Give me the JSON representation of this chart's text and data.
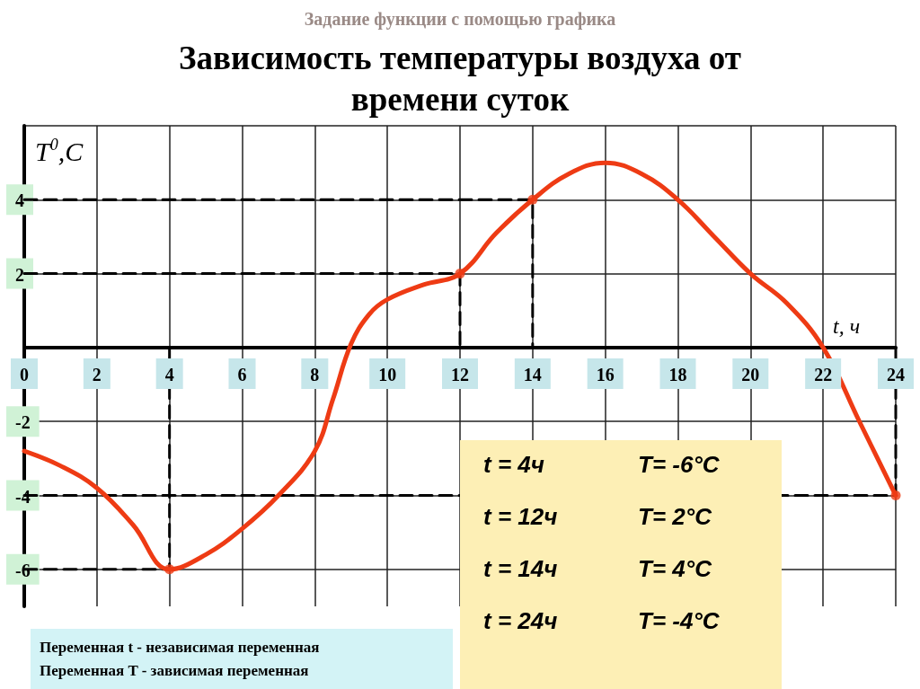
{
  "chart_data": {
    "type": "line",
    "title": "Зависимость температуры воздуха от времени суток",
    "subtitle": "Задание функции с помощью графика",
    "xlabel": "t, ч",
    "ylabel": "T$^{0}$,C",
    "series": [
      {
        "type": "line",
        "color": "#ee3b14",
        "x": [
          0,
          1,
          2,
          3,
          4,
          5,
          6,
          7,
          8,
          8.5,
          9,
          9.5,
          10,
          11,
          12,
          13,
          14,
          15,
          16,
          17,
          18,
          19,
          20,
          21,
          22,
          23,
          24
        ],
        "values": [
          -2.8,
          -3.2,
          -3.8,
          -4.8,
          -6,
          -5.6,
          -4.9,
          -4,
          -2.8,
          -1.4,
          0.1,
          0.9,
          1.3,
          1.7,
          2,
          3.1,
          4,
          4.7,
          5,
          4.7,
          4,
          3,
          2,
          1.2,
          0,
          -2,
          -4
        ],
        "marker": "none",
        "line_style": "solid"
      },
      {
        "type": "scatter",
        "color": "#ee3b14",
        "x": [
          4,
          12,
          14,
          24
        ],
        "values": [
          -6,
          2,
          4,
          -4
        ],
        "marker": "circle"
      },
      {
        "color": "#000000",
        "x": [
          0,
          4,
          4
        ],
        "values": [
          -6,
          -6,
          0
        ],
        "marker": "none",
        "line_style": "dashed"
      },
      {
        "color": "#000000",
        "x": [
          0,
          12,
          12
        ],
        "values": [
          2,
          2,
          0
        ],
        "marker": "none",
        "line_style": "dashed"
      },
      {
        "color": "#000000",
        "x": [
          0,
          14,
          14
        ],
        "values": [
          4,
          4,
          0
        ],
        "marker": "none",
        "line_style": "dashed"
      },
      {
        "color": "#000000",
        "x": [
          0,
          24,
          24
        ],
        "values": [
          -4,
          -4,
          0
        ],
        "marker": "none",
        "line_style": "dashed"
      }
    ],
    "xlim": [
      0,
      24
    ],
    "xticks": [
      0,
      2,
      4,
      6,
      8,
      10,
      12,
      14,
      16,
      18,
      20,
      22,
      24
    ],
    "ylim": [
      -7,
      6
    ],
    "yticks": [
      -6,
      -4,
      -2,
      {
        "value": 0,
        "label": null
      },
      2,
      4,
      {
        "value": 6,
        "label": null
      }
    ],
    "grid": true,
    "annotations": [
      "t = 4ч",
      "T= -6°C",
      "t = 12ч",
      "T= 2°C",
      "t = 14ч",
      "T= 4°C",
      "t = 24ч",
      "T= -4°C",
      "Переменная t - независимая переменная",
      "Переменная T - зависимая переменная"
    ]
  }
}
